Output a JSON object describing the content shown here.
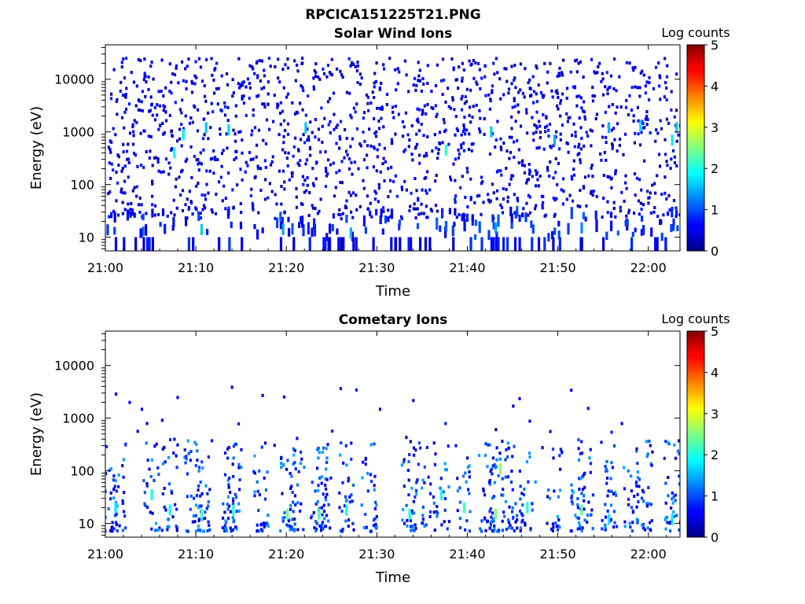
{
  "figure_title": "RPCICA151225T21.PNG",
  "chart_data": [
    {
      "type": "heatmap",
      "title": "Solar Wind Ions",
      "xlabel": "Time",
      "ylabel": "Energy (eV)",
      "x_tick_labels": [
        "21:00",
        "21:10",
        "21:20",
        "21:30",
        "21:40",
        "21:50",
        "22:00"
      ],
      "x_tick_minutes": [
        0,
        10,
        20,
        30,
        40,
        50,
        60
      ],
      "xlim_minutes": [
        0,
        63.5
      ],
      "y_scale": "log",
      "y_tick_labels": [
        "10",
        "100",
        "1000",
        "10000"
      ],
      "y_tick_values": [
        10,
        100,
        1000,
        10000
      ],
      "ylim": [
        5.5,
        45000
      ],
      "colorbar": {
        "label": "Log counts",
        "ticks": [
          "0",
          "1",
          "2",
          "3",
          "4",
          "5"
        ],
        "range": [
          0,
          5
        ],
        "colormap": "jet"
      },
      "hotspots": [
        {
          "t": 7.5,
          "e": 400,
          "v": 1.9
        },
        {
          "t": 8.5,
          "e": 900,
          "v": 1.8
        },
        {
          "t": 11.0,
          "e": 1200,
          "v": 1.6
        },
        {
          "t": 13.5,
          "e": 1100,
          "v": 1.7
        },
        {
          "t": 22.0,
          "e": 1200,
          "v": 1.6
        },
        {
          "t": 37.5,
          "e": 450,
          "v": 2.1
        },
        {
          "t": 42.5,
          "e": 1000,
          "v": 1.6
        },
        {
          "t": 49.5,
          "e": 700,
          "v": 1.5
        },
        {
          "t": 55.5,
          "e": 1200,
          "v": 1.5
        },
        {
          "t": 59.0,
          "e": 1300,
          "v": 1.7
        },
        {
          "t": 62.5,
          "e": 700,
          "v": 1.8
        },
        {
          "t": 63.0,
          "e": 1200,
          "v": 1.6
        },
        {
          "t": 10.5,
          "e": 14,
          "v": 1.6
        },
        {
          "t": 19.5,
          "e": 14,
          "v": 1.4
        },
        {
          "t": 27.0,
          "e": 12,
          "v": 1.5
        },
        {
          "t": 43.0,
          "e": 15,
          "v": 1.4
        },
        {
          "t": 52.5,
          "e": 15,
          "v": 1.3
        }
      ]
    },
    {
      "type": "heatmap",
      "title": "Cometary Ions",
      "xlabel": "Time",
      "ylabel": "Energy (eV)",
      "x_tick_labels": [
        "21:00",
        "21:10",
        "21:20",
        "21:30",
        "21:40",
        "21:50",
        "22:00"
      ],
      "x_tick_minutes": [
        0,
        10,
        20,
        30,
        40,
        50,
        60
      ],
      "xlim_minutes": [
        0,
        63.5
      ],
      "y_scale": "log",
      "y_tick_labels": [
        "10",
        "100",
        "1000",
        "10000"
      ],
      "y_tick_values": [
        10,
        100,
        1000,
        10000
      ],
      "ylim": [
        5.5,
        45000
      ],
      "colorbar": {
        "label": "Log counts",
        "ticks": [
          "0",
          "1",
          "2",
          "3",
          "4",
          "5"
        ],
        "range": [
          0,
          5
        ],
        "colormap": "jet"
      },
      "hotspots": [
        {
          "t": 1.0,
          "e": 20,
          "v": 1.8
        },
        {
          "t": 5.0,
          "e": 35,
          "v": 2.0
        },
        {
          "t": 7.0,
          "e": 18,
          "v": 1.9
        },
        {
          "t": 10.5,
          "e": 15,
          "v": 2.2
        },
        {
          "t": 14.0,
          "e": 18,
          "v": 2.0
        },
        {
          "t": 20.0,
          "e": 15,
          "v": 2.4
        },
        {
          "t": 23.5,
          "e": 15,
          "v": 2.3
        },
        {
          "t": 26.5,
          "e": 18,
          "v": 1.9
        },
        {
          "t": 33.5,
          "e": 15,
          "v": 2.0
        },
        {
          "t": 37.0,
          "e": 35,
          "v": 2.0
        },
        {
          "t": 39.5,
          "e": 20,
          "v": 2.2
        },
        {
          "t": 43.0,
          "e": 15,
          "v": 2.5
        },
        {
          "t": 43.5,
          "e": 110,
          "v": 2.6
        },
        {
          "t": 46.5,
          "e": 20,
          "v": 2.0
        },
        {
          "t": 52.5,
          "e": 18,
          "v": 2.3
        },
        {
          "t": 55.5,
          "e": 12,
          "v": 1.8
        },
        {
          "t": 62.5,
          "e": 12,
          "v": 1.8
        }
      ]
    }
  ]
}
